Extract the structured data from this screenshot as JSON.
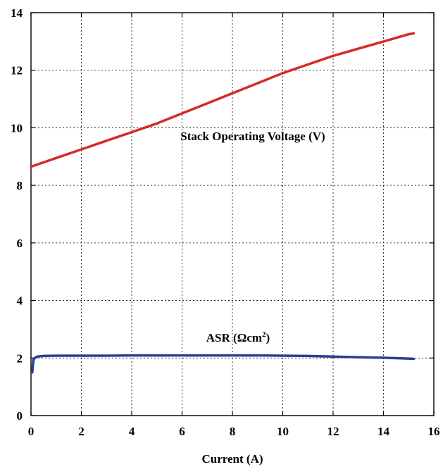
{
  "chart_data": {
    "type": "line",
    "xlabel": "Current (A)",
    "ylabel": "",
    "xlim": [
      0,
      16
    ],
    "ylim": [
      0,
      14
    ],
    "x_ticks": [
      "0",
      "2",
      "4",
      "6",
      "8",
      "10",
      "12",
      "14",
      "16"
    ],
    "y_ticks": [
      "0",
      "2",
      "4",
      "6",
      "8",
      "10",
      "12",
      "14"
    ],
    "grid": true,
    "series": [
      {
        "name": "Stack Operating Voltage (V)",
        "color": "#d42a2a",
        "x": [
          0,
          1,
          2,
          3,
          4,
          5,
          6,
          7,
          8,
          9,
          10,
          11,
          12,
          13,
          14,
          15,
          15.2
        ],
        "y": [
          8.65,
          8.95,
          9.25,
          9.55,
          9.85,
          10.15,
          10.5,
          10.85,
          11.2,
          11.55,
          11.9,
          12.2,
          12.5,
          12.75,
          13.0,
          13.25,
          13.28
        ]
      },
      {
        "name": "ASR (Ωcm2)",
        "color": "#2a3f8f",
        "x": [
          0.05,
          0.08,
          0.1,
          0.15,
          0.25,
          0.5,
          1,
          2,
          3,
          4,
          5,
          6,
          7,
          8,
          9,
          10,
          11,
          12,
          13,
          14,
          15,
          15.2
        ],
        "y": [
          1.5,
          1.8,
          1.95,
          2.0,
          2.05,
          2.07,
          2.08,
          2.08,
          2.08,
          2.09,
          2.09,
          2.09,
          2.09,
          2.09,
          2.09,
          2.08,
          2.07,
          2.05,
          2.03,
          2.01,
          1.98,
          1.97
        ]
      }
    ],
    "annotations": {
      "voltage_label": "Stack Operating Voltage (V)",
      "asr_label_main": "ASR (Ωcm",
      "asr_label_sup": "2",
      "asr_label_end": ")"
    }
  }
}
